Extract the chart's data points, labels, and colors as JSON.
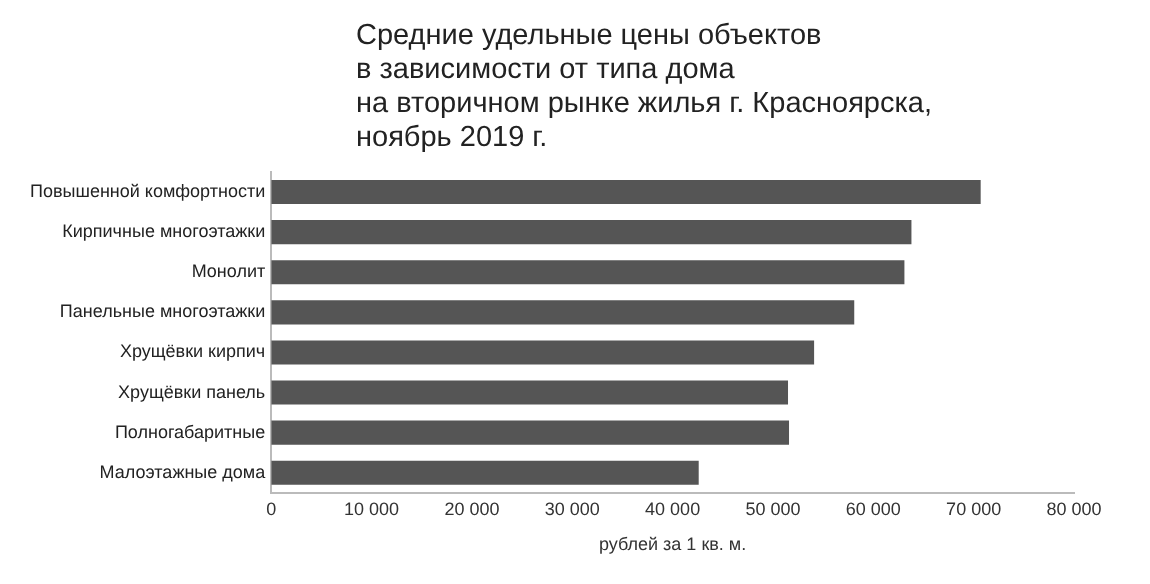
{
  "chart_data": {
    "type": "bar",
    "orientation": "horizontal",
    "title": "Средние удельные цены объектов\nв зависимости от типа дома\nна вторичном рынке жилья г. Красноярска,\nноябрь 2019 г.",
    "xlabel": "рублей за 1 кв. м.",
    "categories": [
      "Повышенной комфортности",
      "Кирпичные многоэтажки",
      "Монолит",
      "Панельные многоэтажки",
      "Хрущёвки кирпич",
      "Хрущёвки панель",
      "Полногабаритные",
      "Малоэтажные дома"
    ],
    "values": [
      70700,
      63800,
      63100,
      58100,
      54100,
      51500,
      51600,
      42600
    ],
    "color": "#555555",
    "xlim": [
      0,
      80000
    ],
    "xticks": [
      {
        "value": 0,
        "label": "0"
      },
      {
        "value": 10000,
        "label": "10 000"
      },
      {
        "value": 20000,
        "label": "20 000"
      },
      {
        "value": 30000,
        "label": "30 000"
      },
      {
        "value": 40000,
        "label": "40 000"
      },
      {
        "value": 50000,
        "label": "50 000"
      },
      {
        "value": 60000,
        "label": "60 000"
      },
      {
        "value": 70000,
        "label": "70 000"
      },
      {
        "value": 80000,
        "label": "80 000"
      }
    ],
    "grid": false,
    "legend": false
  }
}
